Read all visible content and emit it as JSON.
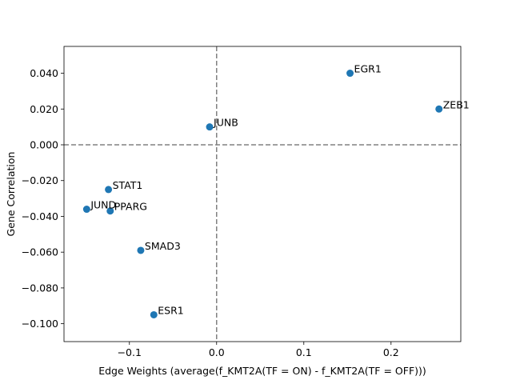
{
  "chart_data": {
    "type": "scatter",
    "title": "",
    "xlabel": "Edge Weights (average(f_KMT2A(TF = ON) - f_KMT2A(TF = OFF)))",
    "ylabel": "Gene Correlation",
    "xlim": [
      -0.175,
      0.28
    ],
    "ylim": [
      -0.11,
      0.055
    ],
    "xticks": [
      -0.1,
      0.0,
      0.1,
      0.2
    ],
    "xtick_labels": [
      "−0.1",
      "0.0",
      "0.1",
      "0.2"
    ],
    "yticks": [
      -0.1,
      -0.08,
      -0.06,
      -0.04,
      -0.02,
      0.0,
      0.02,
      0.04
    ],
    "ytick_labels": [
      "−0.100",
      "−0.080",
      "−0.060",
      "−0.040",
      "−0.020",
      "0.000",
      "0.020",
      "0.040"
    ],
    "grid": false,
    "reference_lines": {
      "x": 0.0,
      "y": 0.0,
      "style": "dashed"
    },
    "marker_color": "#1f77b4",
    "points": [
      {
        "label": "EGR1",
        "x": 0.153,
        "y": 0.04
      },
      {
        "label": "ZEB1",
        "x": 0.255,
        "y": 0.02
      },
      {
        "label": "JUNB",
        "x": -0.008,
        "y": 0.01
      },
      {
        "label": "STAT1",
        "x": -0.124,
        "y": -0.025
      },
      {
        "label": "JUND",
        "x": -0.149,
        "y": -0.036
      },
      {
        "label": "PPARG",
        "x": -0.122,
        "y": -0.037
      },
      {
        "label": "SMAD3",
        "x": -0.087,
        "y": -0.059
      },
      {
        "label": "ESR1",
        "x": -0.072,
        "y": -0.095
      }
    ]
  }
}
